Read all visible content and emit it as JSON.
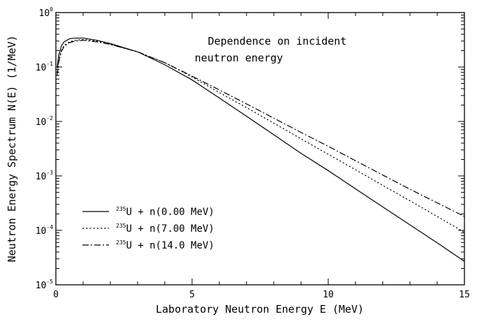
{
  "chart_data": {
    "type": "line",
    "title": "",
    "xlabel": "Laboratory Neutron Energy E (MeV)",
    "ylabel": "Neutron Energy Spectrum N(E) (1/MeV)",
    "xlim": [
      0,
      15
    ],
    "ylim": [
      1e-05,
      1
    ],
    "yscale": "log",
    "grid": false,
    "legend_placement": "lower-left",
    "annotation": [
      "Dependence on incident",
      "neutron energy"
    ],
    "x_ticks": [
      "0",
      "5",
      "10",
      "15"
    ],
    "y_ticks": [
      {
        "base": "10",
        "exp": "0"
      },
      {
        "base": "10",
        "exp": "-1"
      },
      {
        "base": "10",
        "exp": "-2"
      },
      {
        "base": "10",
        "exp": "-3"
      },
      {
        "base": "10",
        "exp": "-4"
      },
      {
        "base": "10",
        "exp": "-5"
      }
    ],
    "series": [
      {
        "mass": "235",
        "name": "U + n(0.00 MeV)",
        "style": "solid",
        "x": [
          0.05,
          0.1,
          0.2,
          0.3,
          0.5,
          0.7,
          1.0,
          1.5,
          2.0,
          3.0,
          4.0,
          5.0,
          6.0,
          7.0,
          8.0,
          9.0,
          10.0,
          11.0,
          12.0,
          13.0,
          14.0,
          15.0
        ],
        "y": [
          0.1,
          0.16,
          0.24,
          0.29,
          0.33,
          0.34,
          0.34,
          0.31,
          0.27,
          0.19,
          0.11,
          0.058,
          0.027,
          0.0125,
          0.0057,
          0.0026,
          0.00125,
          0.00058,
          0.00027,
          0.000126,
          5.9e-05,
          2.7e-05
        ]
      },
      {
        "mass": "235",
        "name": "U + n(7.00 MeV)",
        "style": "dotted",
        "x": [
          0.05,
          0.1,
          0.2,
          0.3,
          0.5,
          0.7,
          1.0,
          1.5,
          2.0,
          3.0,
          4.0,
          5.0,
          6.0,
          7.0,
          8.0,
          9.0,
          10.0,
          11.0,
          12.0,
          13.0,
          14.0,
          15.0
        ],
        "y": [
          0.08,
          0.13,
          0.2,
          0.25,
          0.29,
          0.31,
          0.32,
          0.3,
          0.26,
          0.19,
          0.12,
          0.066,
          0.034,
          0.018,
          0.0093,
          0.0048,
          0.0025,
          0.0013,
          0.00067,
          0.00035,
          0.00018,
          9.2e-05
        ]
      },
      {
        "mass": "235",
        "name": "U + n(14.0 MeV)",
        "style": "dashdot",
        "x": [
          0.05,
          0.1,
          0.2,
          0.3,
          0.5,
          0.7,
          1.0,
          1.5,
          2.0,
          3.0,
          4.0,
          5.0,
          6.0,
          7.0,
          8.0,
          9.0,
          10.0,
          11.0,
          12.0,
          13.0,
          14.0,
          15.0
        ],
        "y": [
          0.07,
          0.12,
          0.19,
          0.24,
          0.28,
          0.3,
          0.31,
          0.29,
          0.26,
          0.19,
          0.12,
          0.068,
          0.038,
          0.021,
          0.0115,
          0.0063,
          0.0035,
          0.0019,
          0.00104,
          0.00057,
          0.00032,
          0.00018
        ]
      }
    ]
  }
}
